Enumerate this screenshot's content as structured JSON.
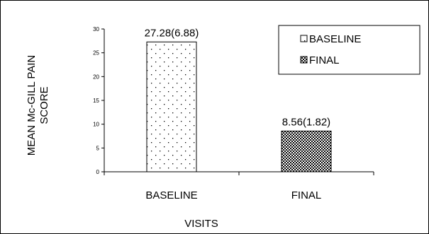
{
  "chart_data": {
    "type": "bar",
    "categories": [
      "BASELINE",
      "FINAL"
    ],
    "values": [
      27.28,
      8.56
    ],
    "data_labels": [
      "27.28(6.88)",
      "8.56(1.82)"
    ],
    "xlabel": "VISITS",
    "ylabel_lines": [
      "MEAN Mc-GILL PAIN",
      "SCORE"
    ],
    "ylim": [
      0,
      30
    ],
    "yticks": [
      0,
      5,
      10,
      15,
      20,
      25,
      30
    ],
    "legend": {
      "position": "top-right",
      "entries": [
        {
          "label": "BASELINE",
          "pattern": "dots"
        },
        {
          "label": "FINAL",
          "pattern": "checker"
        }
      ]
    },
    "grid": false
  }
}
